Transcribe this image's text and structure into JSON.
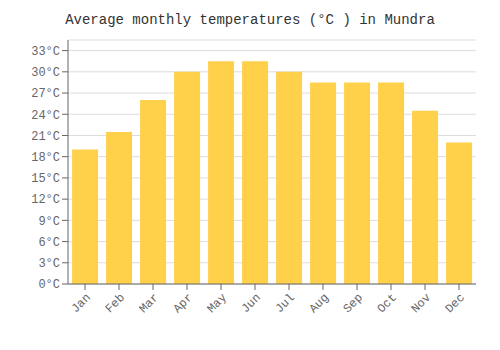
{
  "chart_data": {
    "type": "bar",
    "title": "Average monthly temperatures (°C ) in Mundra",
    "categories": [
      "Jan",
      "Feb",
      "Mar",
      "Apr",
      "May",
      "Jun",
      "Jul",
      "Aug",
      "Sep",
      "Oct",
      "Nov",
      "Dec"
    ],
    "values": [
      19.0,
      21.5,
      26.0,
      30.0,
      31.5,
      31.5,
      30.0,
      28.5,
      28.5,
      28.5,
      24.5,
      20.0
    ],
    "color": "#FFD04A",
    "ylim": [
      0,
      34.5
    ],
    "yticks": [
      {
        "value": 0,
        "label": "0°C"
      },
      {
        "value": 3,
        "label": "3°C"
      },
      {
        "value": 6,
        "label": "6°C"
      },
      {
        "value": 9,
        "label": "9°C"
      },
      {
        "value": 12,
        "label": "12°C"
      },
      {
        "value": 15,
        "label": "15°C"
      },
      {
        "value": 18,
        "label": "18°C"
      },
      {
        "value": 21,
        "label": "21°C"
      },
      {
        "value": 24,
        "label": "24°C"
      },
      {
        "value": 27,
        "label": "27°C"
      },
      {
        "value": 30,
        "label": "30°C"
      },
      {
        "value": 33,
        "label": "33°C"
      }
    ],
    "grid": true
  }
}
